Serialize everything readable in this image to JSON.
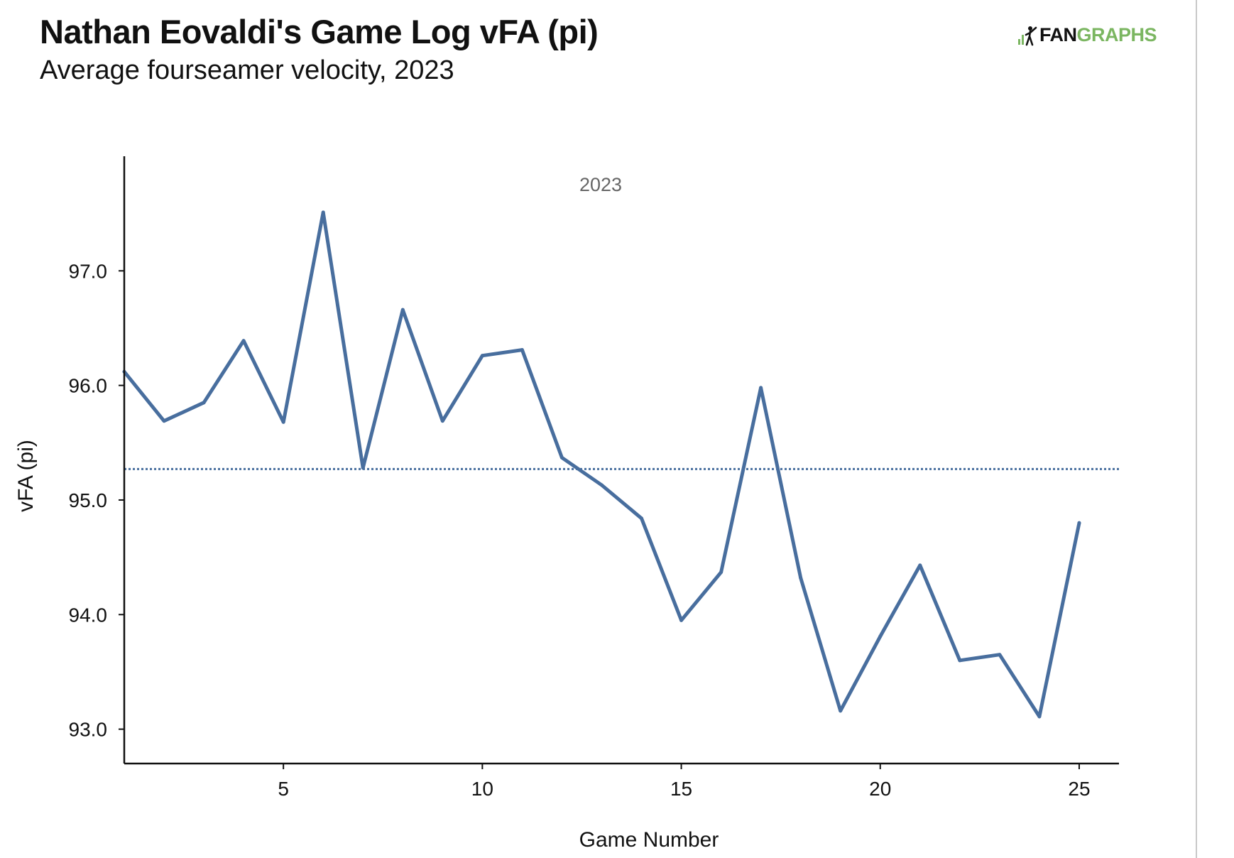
{
  "title": "Nathan Eovaldi's Game Log vFA (pi)",
  "subtitle": "Average fourseamer velocity, 2023",
  "logo": {
    "part1": "FAN",
    "part2": "GRAPHS",
    "accent_color": "#7bb661",
    "icon": "batter-logo-icon"
  },
  "chart_data": {
    "type": "line",
    "annotation": "2023",
    "xlabel": "Game Number",
    "ylabel": "vFA (pi)",
    "xlim": [
      1,
      26
    ],
    "ylim": [
      92.7,
      98.0
    ],
    "xticks": [
      5,
      10,
      15,
      20,
      25
    ],
    "xtick_labels": [
      "5",
      "10",
      "15",
      "20",
      "25"
    ],
    "yticks": [
      93.0,
      94.0,
      95.0,
      96.0,
      97.0
    ],
    "ytick_labels": [
      "93.0",
      "94.0",
      "95.0",
      "96.0",
      "97.0"
    ],
    "grid": false,
    "line_color": "#486e9e",
    "average": 95.27,
    "series": [
      {
        "x": [
          1,
          2,
          3,
          4,
          5,
          6,
          7,
          8,
          9,
          10,
          11,
          12,
          13,
          14,
          15,
          16,
          17,
          18,
          19,
          20,
          21,
          22,
          23,
          24,
          25
        ],
        "values": [
          96.12,
          95.69,
          95.85,
          96.39,
          95.68,
          97.51,
          95.28,
          96.66,
          95.69,
          96.26,
          96.31,
          95.37,
          95.13,
          94.84,
          93.95,
          94.37,
          95.98,
          94.32,
          93.16,
          93.81,
          94.43,
          93.6,
          93.65,
          93.11,
          94.8
        ]
      }
    ]
  }
}
